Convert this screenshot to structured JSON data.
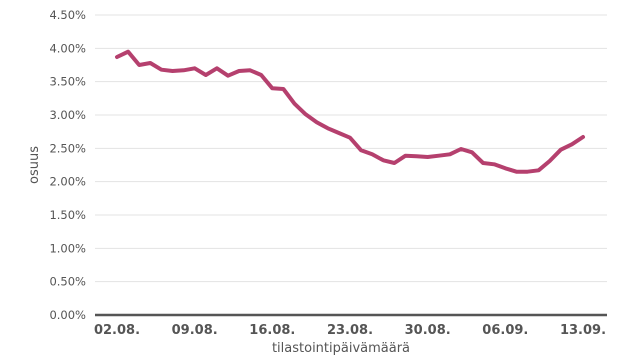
{
  "chart_data": {
    "type": "line",
    "title": "",
    "xlabel": "tilastointipäivämäärä",
    "ylabel": "osuus",
    "ylim": [
      0,
      4.5
    ],
    "y_ticks": [
      0,
      0.5,
      1.0,
      1.5,
      2.0,
      2.5,
      3.0,
      3.5,
      4.0,
      4.5
    ],
    "y_tick_labels": [
      "0.00%",
      "0.50%",
      "1.00%",
      "1.50%",
      "2.00%",
      "2.50%",
      "3.00%",
      "3.50%",
      "4.00%",
      "4.50%"
    ],
    "x_range": [
      "02.08.",
      "13.09."
    ],
    "x_tick_labels": [
      "02.08.",
      "09.08.",
      "16.08.",
      "23.08.",
      "30.08.",
      "06.09.",
      "13.09."
    ],
    "grid": true,
    "legend": "none",
    "line_color": "#b5406e",
    "series": [
      {
        "x": [
          "02.08.",
          "03.08.",
          "04.08.",
          "05.08.",
          "06.08.",
          "07.08.",
          "08.08.",
          "09.08.",
          "10.08.",
          "11.08.",
          "12.08.",
          "13.08.",
          "14.08.",
          "15.08.",
          "16.08.",
          "17.08.",
          "18.08.",
          "19.08.",
          "20.08.",
          "21.08.",
          "22.08.",
          "23.08.",
          "24.08.",
          "25.08.",
          "26.08.",
          "27.08.",
          "28.08.",
          "29.08.",
          "30.08.",
          "31.08.",
          "01.09.",
          "02.09.",
          "03.09.",
          "04.09.",
          "05.09.",
          "06.09.",
          "07.09.",
          "08.09.",
          "09.09.",
          "10.09.",
          "11.09.",
          "12.09.",
          "13.09."
        ],
        "values": [
          3.87,
          3.95,
          3.75,
          3.78,
          3.68,
          3.66,
          3.67,
          3.7,
          3.6,
          3.7,
          3.59,
          3.66,
          3.67,
          3.6,
          3.4,
          3.39,
          3.17,
          3.01,
          2.89,
          2.8,
          2.73,
          2.66,
          2.47,
          2.41,
          2.32,
          2.28,
          2.39,
          2.38,
          2.37,
          2.39,
          2.41,
          2.49,
          2.44,
          2.28,
          2.26,
          2.2,
          2.15,
          2.15,
          2.17,
          2.31,
          2.48,
          2.56,
          2.67
        ]
      }
    ]
  }
}
